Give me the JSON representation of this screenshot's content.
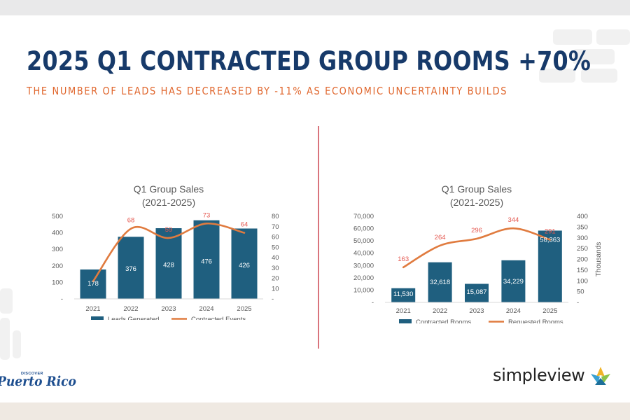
{
  "slide": {
    "title": "2025 Q1 CONTRACTED GROUP ROOMS +70%",
    "subtitle": "THE NUMBER OF LEADS HAS DECREASED BY -11% AS ECONOMIC UNCERTAINTY BUILDS"
  },
  "logos": {
    "left_small": "DISCOVER",
    "left_main": "Puerto Rico",
    "right_word": "simpleview"
  },
  "colors": {
    "title": "#173a6a",
    "accent": "#e0672e",
    "bar": "#1f5f7f",
    "line": "#e07b3f",
    "divider": "#d9747c"
  },
  "chart_data": [
    {
      "type": "bar",
      "title": "Q1 Group Sales",
      "subtitle": "(2021-2025)",
      "categories": [
        "2021",
        "2022",
        "2023",
        "2024",
        "2025"
      ],
      "series": [
        {
          "name": "Leads Generated",
          "type": "bar",
          "axis": "left",
          "values": [
            178,
            376,
            428,
            476,
            426
          ],
          "labels": [
            "178",
            "376",
            "428",
            "476",
            "426"
          ]
        },
        {
          "name": "Contracted Events",
          "type": "line",
          "axis": "right",
          "values": [
            17,
            68,
            59,
            73,
            64
          ],
          "labels": [
            "",
            "68",
            "59",
            "73",
            "64"
          ]
        }
      ],
      "ylim": [
        0,
        500
      ],
      "yticks": [
        "-",
        "100",
        "200",
        "300",
        "400",
        "500"
      ],
      "y2lim": [
        0,
        80
      ],
      "y2ticks": [
        "-",
        "10",
        "20",
        "30",
        "40",
        "50",
        "60",
        "70",
        "80"
      ],
      "y2label": "",
      "legend": "bottom",
      "grid": false
    },
    {
      "type": "bar",
      "title": "Q1 Group Sales",
      "subtitle": "(2021-2025)",
      "categories": [
        "2021",
        "2022",
        "2023",
        "2024",
        "2025"
      ],
      "series": [
        {
          "name": "Contracted Rooms",
          "type": "bar",
          "axis": "left",
          "values": [
            11530,
            32618,
            15087,
            34229,
            58363
          ],
          "labels": [
            "11,530",
            "32,618",
            "15,087",
            "34,229",
            "58,363"
          ]
        },
        {
          "name": "Requested Rooms",
          "type": "line",
          "axis": "right",
          "values": [
            163,
            264,
            296,
            344,
            291
          ],
          "labels": [
            "163",
            "264",
            "296",
            "344",
            "291"
          ]
        }
      ],
      "ylim": [
        0,
        70000
      ],
      "yticks": [
        "-",
        "10,000",
        "20,000",
        "30,000",
        "40,000",
        "50,000",
        "60,000",
        "70,000"
      ],
      "y2lim": [
        0,
        400
      ],
      "y2ticks": [
        "-",
        "50",
        "100",
        "150",
        "200",
        "250",
        "300",
        "350",
        "400"
      ],
      "y2label": "Thousands",
      "legend": "bottom",
      "grid": false
    }
  ]
}
